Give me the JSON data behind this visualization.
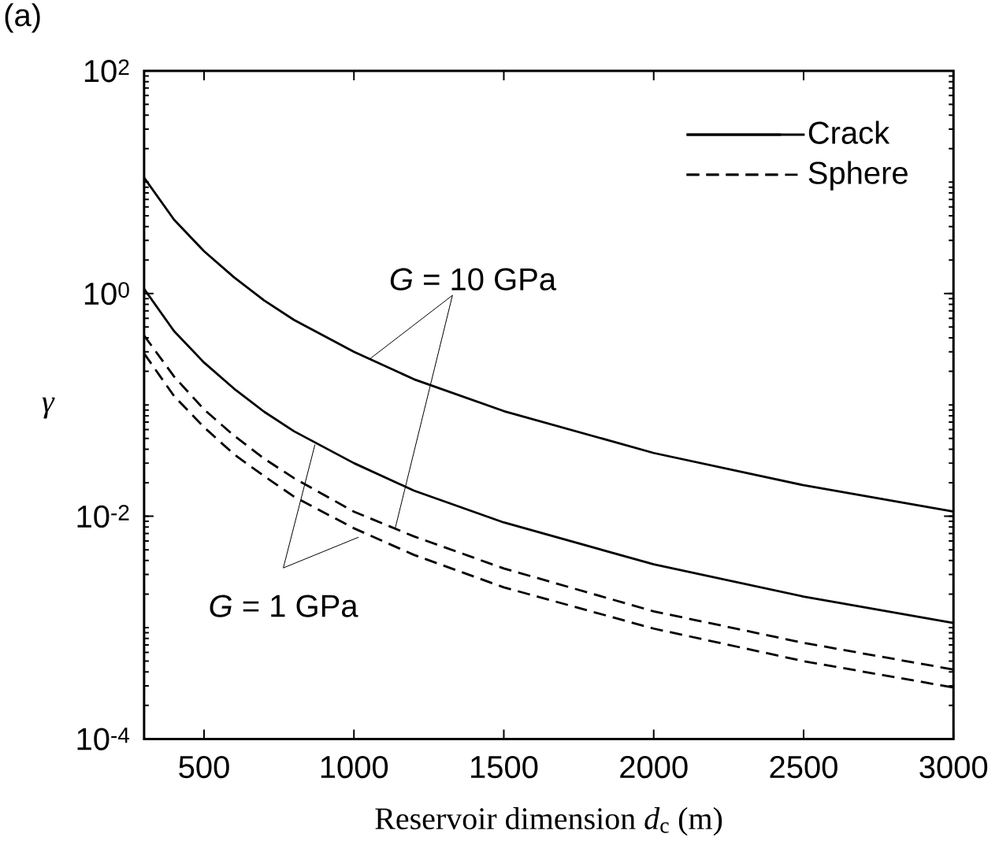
{
  "chart_data": {
    "type": "line",
    "xlabel": "Reservoir dimension *d*$_{c}$ (m)",
    "ylabel": "γ",
    "x": [
      300,
      400,
      500,
      600,
      700,
      800,
      1000,
      1200,
      1500,
      2000,
      2500,
      3000
    ],
    "series": [
      {
        "name": "Crack",
        "color": "#000000",
        "line_style": "solid",
        "values": [
          11,
          4.6,
          2.4,
          1.4,
          0.87,
          0.58,
          0.3,
          0.17,
          0.088,
          0.037,
          0.019,
          0.011
        ]
      },
      {
        "color": "#000000",
        "line_style": "solid",
        "values": [
          1.1,
          0.46,
          0.24,
          0.14,
          0.087,
          0.058,
          0.03,
          0.017,
          0.0088,
          0.0037,
          0.0019,
          0.0011
        ]
      },
      {
        "name": "Sphere",
        "color": "#000000",
        "line_style": "dashed",
        "values": [
          0.42,
          0.18,
          0.091,
          0.053,
          0.033,
          0.022,
          0.011,
          0.0066,
          0.0034,
          0.0014,
          0.00073,
          0.00042
        ]
      },
      {
        "color": "#000000",
        "line_style": "dashed",
        "values": [
          0.29,
          0.12,
          0.063,
          0.036,
          0.023,
          0.015,
          0.0078,
          0.0045,
          0.0023,
          0.00098,
          0.0005,
          0.00029
        ]
      }
    ],
    "xlim": [
      300,
      3000
    ],
    "xticks": [
      500,
      1000,
      1500,
      2000,
      2500,
      3000
    ],
    "ylim": [
      0.0001,
      100
    ],
    "yticks": [
      {
        "value": 0.0001,
        "label": "10$^{-4}$"
      },
      {
        "value": 0.01,
        "label": "10$^{-2}$"
      },
      {
        "value": 1,
        "label": "10$^{0}$"
      },
      {
        "value": 100,
        "label": "10$^{2}$"
      }
    ],
    "log": "y",
    "legend": "top right",
    "annotations": [
      "(a)",
      {
        "text": "*G* = 10 GPa",
        "x": 1054,
        "y": 0.26
      },
      {
        "text": "*G* = 1 GPa",
        "x": 870,
        "y": 0.044
      }
    ]
  }
}
